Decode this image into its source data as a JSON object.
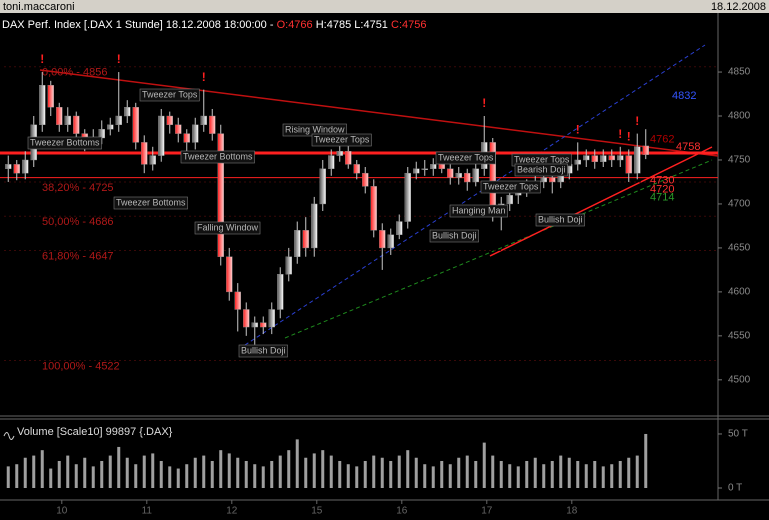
{
  "window": {
    "user": "toni.maccaroni",
    "date": "18.12.2008"
  },
  "chart_data": [
    {
      "type": "candlestick",
      "title": "DAX Perf. Index [.DAX  1 Stunde] 18.12.2008 18:00:00 -",
      "ohlc": {
        "open": "O:4766",
        "high": "H:4785",
        "low": "L:4751",
        "close": "C:4756"
      },
      "x": [
        0,
        1,
        2,
        3,
        4,
        5,
        6,
        7,
        8,
        9,
        10,
        11,
        12,
        13,
        14,
        15,
        16,
        17,
        18,
        19,
        20,
        21,
        22,
        23,
        24,
        25,
        26,
        27,
        28,
        29,
        30,
        31,
        32,
        33,
        34,
        35,
        36,
        37,
        38,
        39,
        40,
        41,
        42,
        43,
        44,
        45,
        46,
        47,
        48,
        49,
        50,
        51,
        52,
        53,
        54,
        55,
        56,
        57,
        58,
        59,
        60,
        61,
        62,
        63,
        64,
        65,
        66,
        67,
        68,
        69,
        70,
        71,
        72,
        73,
        74,
        75
      ],
      "open": [
        4740,
        4745,
        4735,
        4750,
        4790,
        4835,
        4810,
        4790,
        4800,
        4780,
        4770,
        4775,
        4785,
        4790,
        4800,
        4810,
        4770,
        4745,
        4755,
        4800,
        4790,
        4780,
        4770,
        4790,
        4800,
        4780,
        4640,
        4600,
        4580,
        4560,
        4565,
        4560,
        4580,
        4620,
        4640,
        4670,
        4650,
        4700,
        4740,
        4755,
        4760,
        4745,
        4735,
        4720,
        4670,
        4650,
        4665,
        4680,
        4735,
        4740,
        4740,
        4745,
        4740,
        4730,
        4735,
        4725,
        4740,
        4770,
        4690,
        4700,
        4710,
        4715,
        4720,
        4725,
        4730,
        4725,
        4735,
        4745,
        4750,
        4755,
        4748,
        4755,
        4750,
        4755,
        4735,
        4766
      ],
      "high": [
        4755,
        4750,
        4760,
        4800,
        4850,
        4840,
        4815,
        4810,
        4805,
        4785,
        4785,
        4795,
        4798,
        4850,
        4818,
        4815,
        4778,
        4765,
        4808,
        4805,
        4798,
        4785,
        4798,
        4830,
        4808,
        4790,
        4650,
        4610,
        4588,
        4572,
        4572,
        4588,
        4628,
        4650,
        4680,
        4685,
        4708,
        4750,
        4762,
        4768,
        4768,
        4750,
        4742,
        4728,
        4678,
        4672,
        4688,
        4742,
        4748,
        4750,
        4752,
        4752,
        4745,
        4742,
        4740,
        4748,
        4800,
        4775,
        4708,
        4718,
        4722,
        4728,
        4732,
        4738,
        4738,
        4742,
        4755,
        4770,
        4762,
        4762,
        4762,
        4762,
        4765,
        4762,
        4780,
        4785
      ],
      "low": [
        4725,
        4727,
        4728,
        4742,
        4782,
        4800,
        4782,
        4782,
        4770,
        4760,
        4762,
        4768,
        4778,
        4782,
        4792,
        4762,
        4735,
        4738,
        4748,
        4780,
        4770,
        4760,
        4762,
        4782,
        4772,
        4630,
        4590,
        4555,
        4550,
        4540,
        4552,
        4552,
        4570,
        4612,
        4632,
        4640,
        4640,
        4692,
        4732,
        4748,
        4740,
        4728,
        4712,
        4662,
        4625,
        4642,
        4660,
        4672,
        4728,
        4732,
        4732,
        4735,
        4722,
        4722,
        4715,
        4720,
        4732,
        4680,
        4670,
        4692,
        4700,
        4708,
        4715,
        4718,
        4712,
        4718,
        4728,
        4738,
        4742,
        4740,
        4742,
        4742,
        4742,
        4725,
        4728,
        4751
      ],
      "close": [
        4745,
        4735,
        4750,
        4790,
        4835,
        4810,
        4790,
        4800,
        4780,
        4770,
        4775,
        4785,
        4790,
        4800,
        4810,
        4770,
        4745,
        4755,
        4800,
        4790,
        4780,
        4770,
        4790,
        4800,
        4780,
        4640,
        4600,
        4580,
        4560,
        4565,
        4560,
        4580,
        4620,
        4640,
        4670,
        4650,
        4700,
        4740,
        4755,
        4760,
        4745,
        4735,
        4720,
        4670,
        4650,
        4665,
        4680,
        4735,
        4740,
        4740,
        4745,
        4740,
        4730,
        4735,
        4725,
        4740,
        4770,
        4690,
        4700,
        4710,
        4715,
        4720,
        4725,
        4730,
        4725,
        4735,
        4745,
        4750,
        4755,
        4748,
        4755,
        4750,
        4755,
        4735,
        4765,
        4756
      ],
      "up_color": "#ffffff",
      "down_color": "#ff2020",
      "xlim": [
        -0.5,
        83.5
      ],
      "xticks": [
        {
          "value": 6.3,
          "label": "10"
        },
        {
          "value": 16.3,
          "label": "11"
        },
        {
          "value": 26.3,
          "label": "12"
        },
        {
          "value": 36.3,
          "label": "15"
        },
        {
          "value": 46.3,
          "label": "16"
        },
        {
          "value": 56.3,
          "label": "17"
        },
        {
          "value": 66.3,
          "label": "18"
        }
      ],
      "ylim": [
        4460,
        4916
      ],
      "yticks": [
        4500,
        4550,
        4600,
        4650,
        4700,
        4750,
        4800,
        4850
      ],
      "fib_levels": [
        {
          "value": 4856,
          "label": "0,00% - 4856"
        },
        {
          "value": 4725,
          "label": "38,20% - 4725"
        },
        {
          "value": 4686,
          "label": "50,00% - 4686"
        },
        {
          "value": 4647,
          "label": "61,80% - 4647"
        },
        {
          "value": 4522,
          "label": "100,00% - 4522"
        }
      ],
      "fib_color": "#b01818",
      "horizontal_lines": [
        {
          "value": 4758,
          "width": 3,
          "color": "#ff2020"
        },
        {
          "value": 4730,
          "width": 1,
          "color": "#ff2020"
        }
      ],
      "level_labels": [
        {
          "value": 4832,
          "color": "#3355ff"
        },
        {
          "value": 4762,
          "color": "#b00000"
        },
        {
          "value": 4758,
          "color": "#ff3030"
        },
        {
          "value": 4730,
          "color": "#ff3030"
        },
        {
          "value": 4720,
          "color": "#ff3030"
        },
        {
          "value": 4714,
          "color": "#2a9a2a"
        }
      ],
      "annotations": [
        "Tweezer Bottoms",
        "Tweezer Tops",
        "Tweezer Bottoms",
        "Tweezer Bottoms",
        "Rising Window",
        "Tweezer Tops",
        "Falling Window",
        "Bullish Doji",
        "Tweezer Tops",
        "Hanging Man",
        "Bullish Doji",
        "Tweezer Tops",
        "Bearish Doji",
        "Tweezer Tops",
        "Bullish Doji"
      ],
      "alert_text": "!"
    },
    {
      "type": "bar",
      "title": "Volume [Scale10] 99897 {.DAX}",
      "values": [
        20,
        22,
        28,
        30,
        35,
        18,
        25,
        30,
        22,
        28,
        20,
        25,
        30,
        38,
        28,
        22,
        30,
        32,
        25,
        20,
        18,
        22,
        28,
        30,
        25,
        35,
        32,
        28,
        25,
        22,
        20,
        25,
        30,
        35,
        45,
        28,
        32,
        35,
        30,
        25,
        22,
        20,
        25,
        30,
        28,
        25,
        30,
        35,
        28,
        22,
        20,
        25,
        22,
        28,
        30,
        25,
        42,
        30,
        25,
        22,
        20,
        25,
        28,
        22,
        25,
        30,
        28,
        25,
        22,
        25,
        20,
        22,
        25,
        28,
        30,
        50
      ],
      "color": "#a0a0a0",
      "ylim": [
        0,
        62
      ],
      "yticks": [
        {
          "value": 0,
          "label": "0 T"
        },
        {
          "value": 50,
          "label": "50 T"
        }
      ]
    }
  ]
}
